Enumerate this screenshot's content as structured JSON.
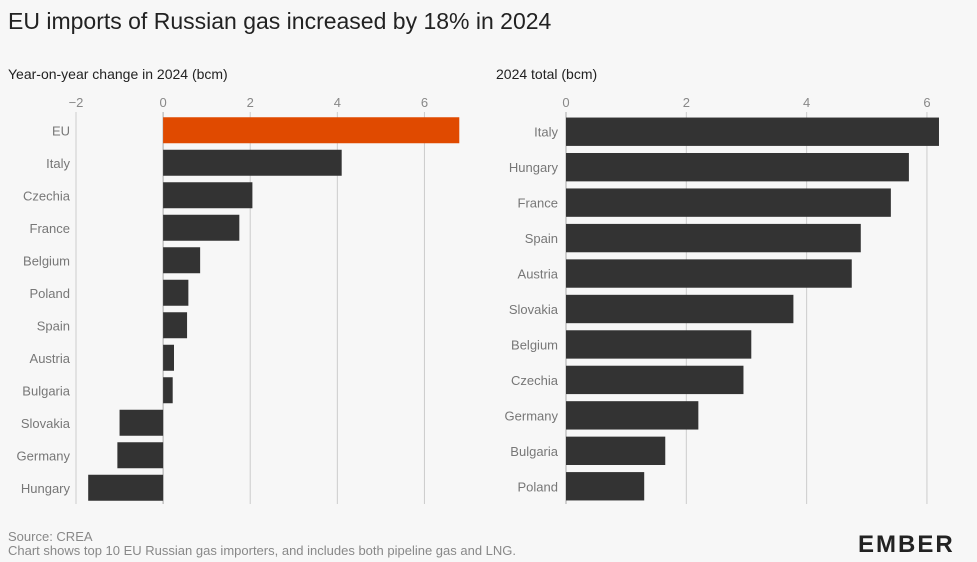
{
  "title": "EU imports of Russian gas increased by 18% in 2024",
  "footer": {
    "source": "Source: CREA",
    "note": "Chart shows top 10 EU Russian gas importers, and includes both pipeline gas and LNG.",
    "logo": "EMBER"
  },
  "colors": {
    "highlight": "#e04a00",
    "bar": "#333333",
    "grid": "#cccccc",
    "zero": "#aaaaaa"
  },
  "chart_data": [
    {
      "type": "bar",
      "orientation": "horizontal",
      "title": "Year-on-year change in 2024 (bcm)",
      "categories": [
        "EU",
        "Italy",
        "Czechia",
        "France",
        "Belgium",
        "Poland",
        "Spain",
        "Austria",
        "Bulgaria",
        "Slovakia",
        "Germany",
        "Hungary"
      ],
      "values": [
        6.8,
        4.1,
        2.05,
        1.75,
        0.85,
        0.58,
        0.55,
        0.25,
        0.22,
        -1.0,
        -1.05,
        -1.72
      ],
      "highlight": "EU",
      "xlim": [
        -2,
        7
      ],
      "xticks": [
        -2,
        0,
        2,
        4,
        6
      ],
      "xtick_labels": [
        "−2",
        "0",
        "2",
        "4",
        "6"
      ],
      "grid": true
    },
    {
      "type": "bar",
      "orientation": "horizontal",
      "title": "2024 total (bcm)",
      "categories": [
        "Italy",
        "Hungary",
        "France",
        "Spain",
        "Austria",
        "Slovakia",
        "Belgium",
        "Czechia",
        "Germany",
        "Bulgaria",
        "Poland"
      ],
      "values": [
        6.2,
        5.7,
        5.4,
        4.9,
        4.75,
        3.78,
        3.08,
        2.95,
        2.2,
        1.65,
        1.3
      ],
      "xlim": [
        0,
        6.3
      ],
      "xticks": [
        0,
        2,
        4,
        6
      ],
      "xtick_labels": [
        "0",
        "2",
        "4",
        "6"
      ],
      "grid": true
    }
  ]
}
